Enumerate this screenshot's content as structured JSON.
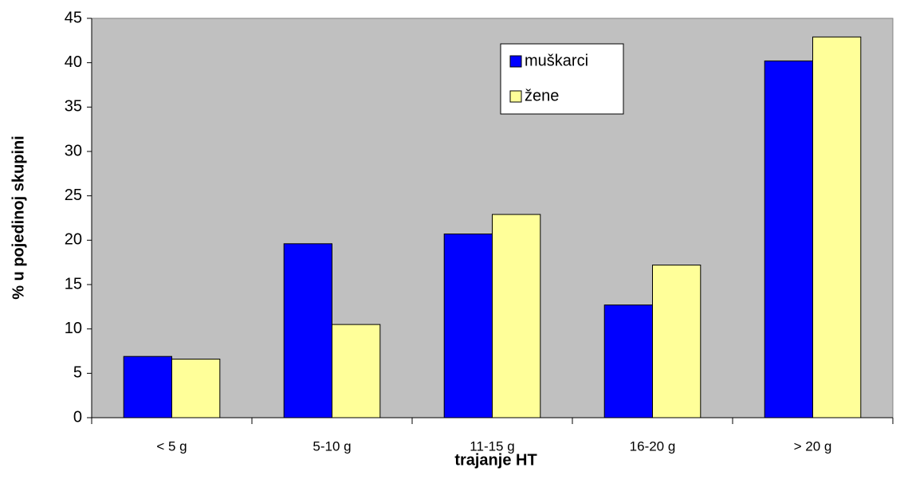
{
  "chart_data": {
    "type": "bar",
    "x_label": "trajanje HT",
    "y_label": "% u pojedinoj skupini",
    "categories": [
      "< 5 g",
      "5-10 g",
      "11-15 g",
      "16-20 g",
      "> 20 g"
    ],
    "series": [
      {
        "name": "muškarci",
        "color": "#0000ff",
        "values": [
          6.9,
          19.6,
          20.7,
          12.7,
          40.2
        ]
      },
      {
        "name": "žene",
        "color": "#ffff99",
        "values": [
          6.6,
          10.5,
          22.9,
          17.2,
          42.9
        ]
      }
    ],
    "ylim": [
      0,
      45
    ],
    "yticks": [
      0,
      5,
      10,
      15,
      20,
      25,
      30,
      35,
      40,
      45
    ],
    "grid": false,
    "legend_position": "top"
  }
}
